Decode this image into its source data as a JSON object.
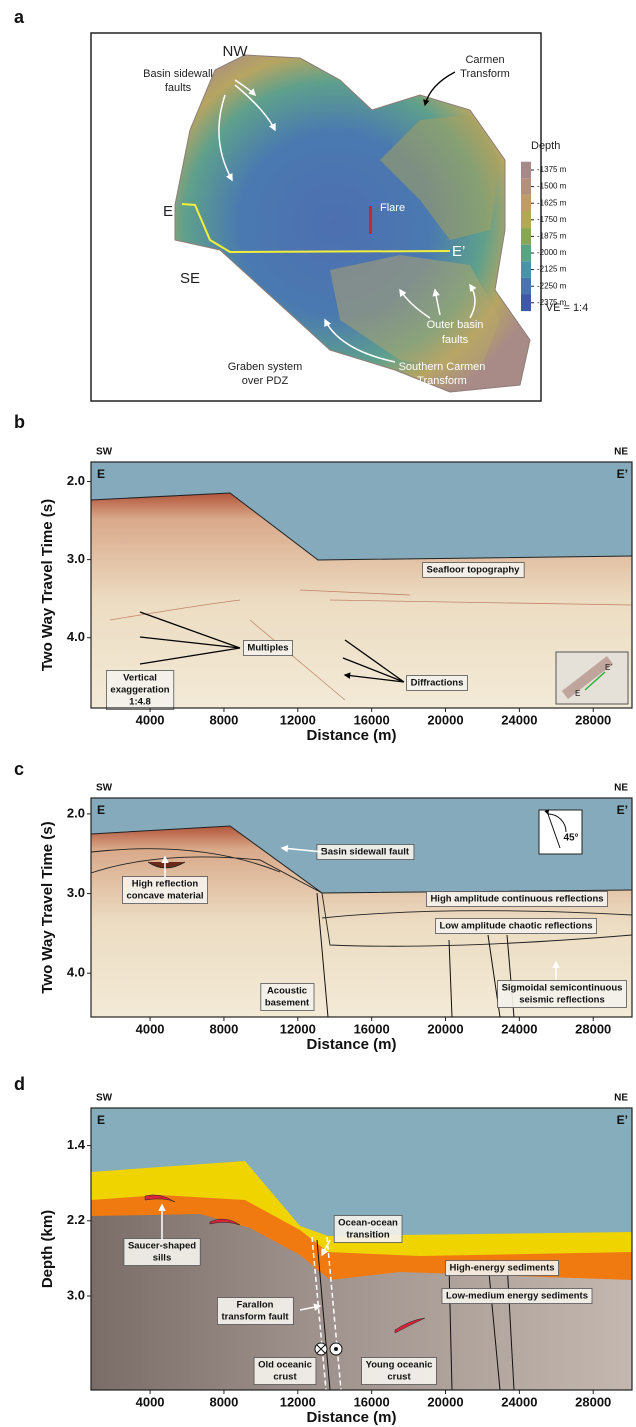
{
  "panel_a": {
    "label": "a",
    "nw": "NW",
    "se": "SE",
    "e": "E",
    "e_prime": "E’",
    "flare": "Flare",
    "carmen": [
      "Carmen",
      "Transform"
    ],
    "sidewall": [
      "Basin sidewall",
      "faults"
    ],
    "outer": [
      "Outer basin",
      "faults"
    ],
    "graben": [
      "Graben system",
      "over PDZ"
    ],
    "southern": [
      "Southern Carmen",
      "Transform"
    ],
    "ve": "VE = 1:4",
    "depth_legend": {
      "title": "Depth",
      "labels": [
        "-1375 m",
        "-1500 m",
        "-1625 m",
        "-1750 m",
        "-1875 m",
        "-2000 m",
        "-2125 m",
        "-2250 m",
        "-2375 m"
      ],
      "colors": [
        "#a8898a",
        "#b68f7c",
        "#c29b6b",
        "#b3a85a",
        "#87a656",
        "#5ca383",
        "#4d91a8",
        "#4a74aa",
        "#3e5aa2"
      ]
    }
  },
  "panel_b": {
    "label": "b",
    "left": "SW",
    "right": "NE",
    "start": "E",
    "end": "E’",
    "x_title": "Distance (m)",
    "y_title": "Two Way Travel Time (s)",
    "xlim": [
      800,
      30100
    ],
    "ylim": [
      1.75,
      4.9
    ],
    "xticks": [
      4000,
      8000,
      12000,
      16000,
      20000,
      24000,
      28000
    ],
    "yticks": [
      {
        "value": 2,
        "label": "2.0"
      },
      {
        "value": 3,
        "label": "3.0"
      },
      {
        "value": 4,
        "label": "4.0"
      }
    ],
    "annotations": {
      "seafloor": [
        "Seafloor topography"
      ],
      "multiples": [
        "Multiples"
      ],
      "diffractions": [
        "Diffractions"
      ],
      "ve": [
        "Vertical",
        "exaggeration",
        "1:4.8"
      ]
    },
    "inset": {
      "e": "E",
      "e_prime": "E’"
    }
  },
  "panel_c": {
    "label": "c",
    "left": "SW",
    "right": "NE",
    "start": "E",
    "end": "E’",
    "x_title": "Distance (m)",
    "y_title": "Two Way Travel Time (s)",
    "xlim": [
      800,
      30100
    ],
    "ylim": [
      1.8,
      4.55
    ],
    "xticks": [
      4000,
      8000,
      12000,
      16000,
      20000,
      24000,
      28000
    ],
    "yticks": [
      {
        "value": 2,
        "label": "2.0"
      },
      {
        "value": 3,
        "label": "3.0"
      },
      {
        "value": 4,
        "label": "4.0"
      }
    ],
    "annotations": {
      "sidewall": [
        "Basin sidewall fault"
      ],
      "concave": [
        "High reflection",
        "concave material"
      ],
      "high_amp": [
        "High amplitude continuous reflections"
      ],
      "low_amp": [
        "Low amplitude chaotic reflections"
      ],
      "basement": [
        "Acoustic",
        "basement"
      ],
      "sigmoidal": [
        "Sigmoidal semicontinuous",
        "seismic reflections"
      ]
    },
    "compass": "45°"
  },
  "panel_d": {
    "label": "d",
    "left": "SW",
    "right": "NE",
    "start": "E",
    "end": "E’",
    "x_title": "Distance (m)",
    "y_title": "Depth (km)",
    "xlim": [
      800,
      30100
    ],
    "ylim": [
      1.0,
      4.0
    ],
    "xticks": [
      4000,
      8000,
      12000,
      16000,
      20000,
      24000,
      28000
    ],
    "yticks": [
      1.4,
      2.2,
      {
        "value": 3,
        "label": "3.0"
      }
    ],
    "annotations": {
      "sills": [
        "Saucer-shaped",
        "sills"
      ],
      "transition": [
        "Ocean-ocean",
        "transition"
      ],
      "high_energy": [
        "High-energy sediments"
      ],
      "low_medium": [
        "Low-medium energy sediments"
      ],
      "farallon": [
        "Farallon",
        "transform fault"
      ],
      "old": [
        "Old oceanic",
        "crust"
      ],
      "young": [
        "Young oceanic",
        "crust"
      ]
    }
  }
}
